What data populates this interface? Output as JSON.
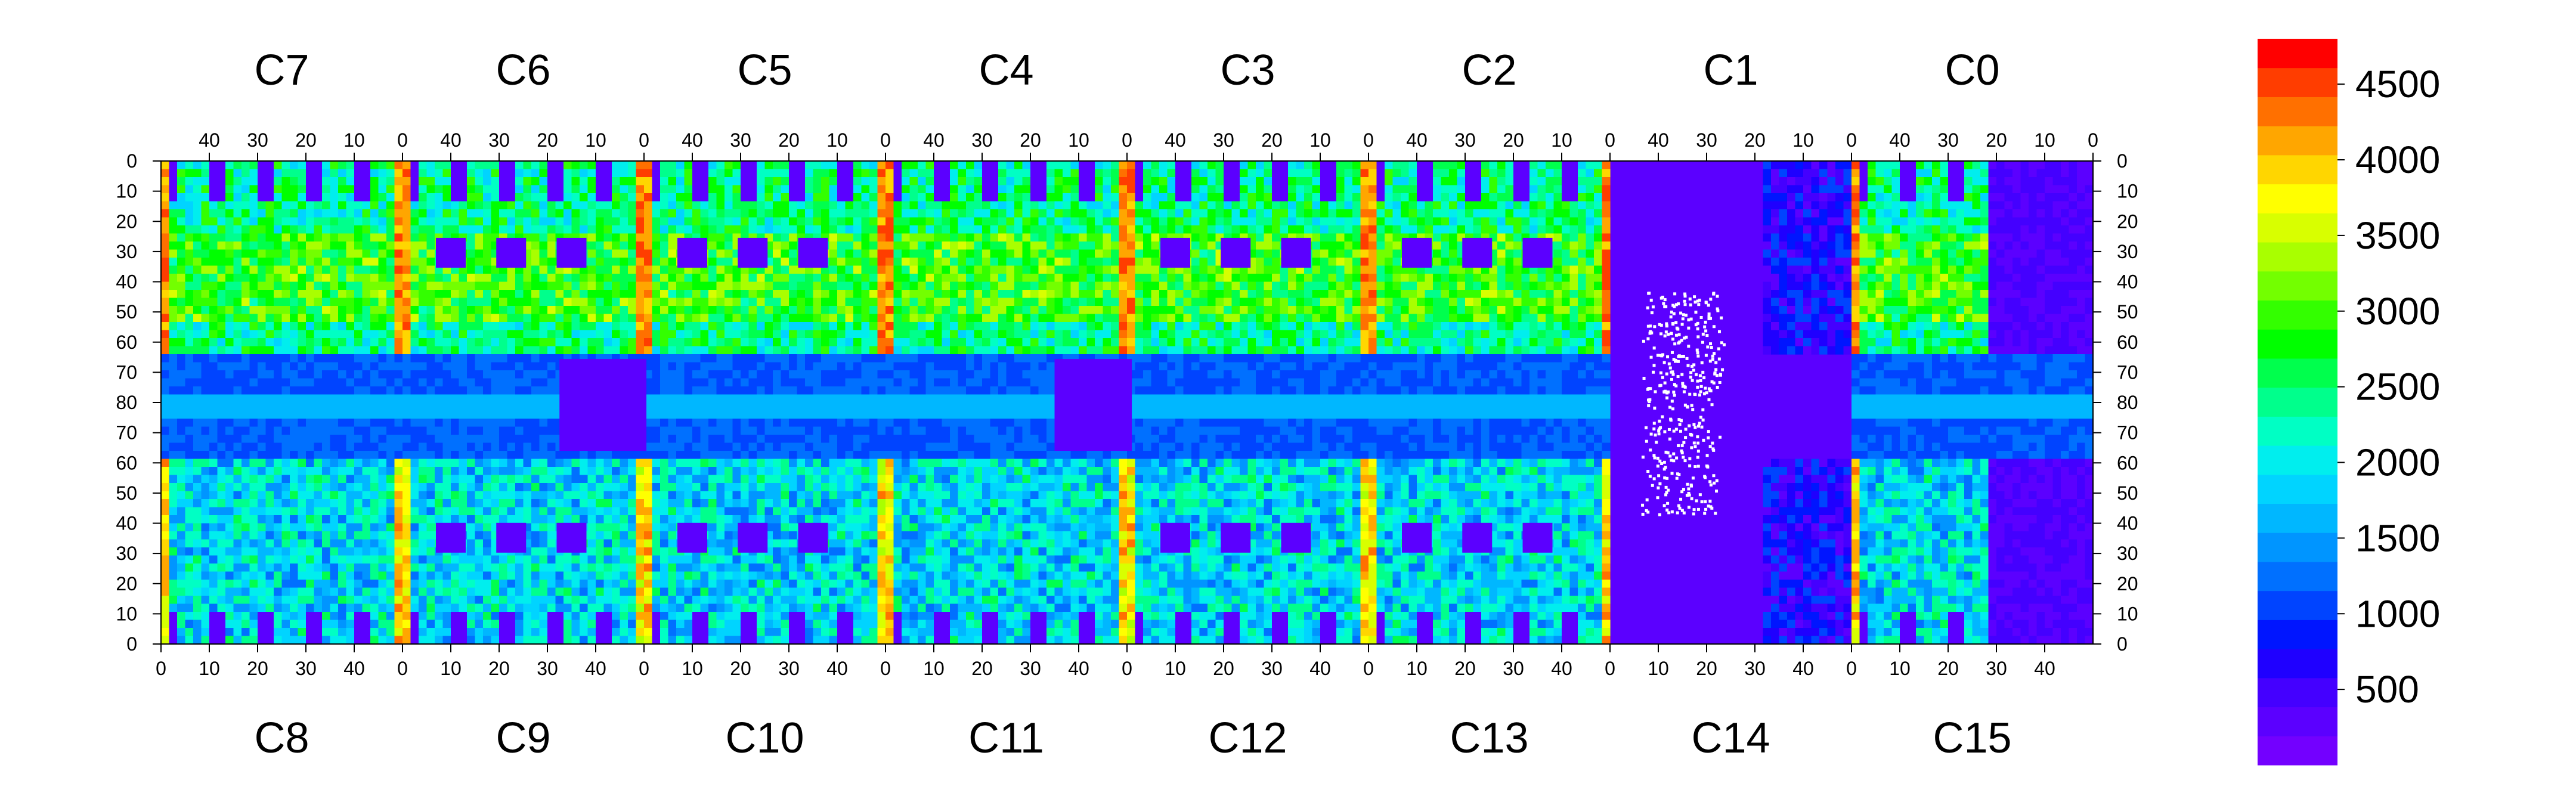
{
  "chart_data": {
    "type": "heatmap",
    "top_chips": [
      "C7",
      "C6",
      "C5",
      "C4",
      "C3",
      "C2",
      "C1",
      "C0"
    ],
    "bottom_chips": [
      "C8",
      "C9",
      "C10",
      "C11",
      "C12",
      "C13",
      "C14",
      "C15"
    ],
    "top_x_ticks": [
      "40",
      "30",
      "20",
      "10",
      "0"
    ],
    "bottom_x_ticks": [
      "0",
      "10",
      "20",
      "30",
      "40"
    ],
    "y_ticks": [
      "0",
      "10",
      "20",
      "30",
      "40",
      "50",
      "60",
      "70",
      "80",
      "70",
      "60",
      "50",
      "40",
      "30",
      "20",
      "10",
      "0"
    ],
    "colorbar": {
      "min": 0,
      "max": 4800,
      "tick_labels": [
        "500",
        "1000",
        "1500",
        "2000",
        "2500",
        "3000",
        "3500",
        "4000",
        "4500"
      ],
      "colors": [
        "#7300ff",
        "#5b00ff",
        "#4400ff",
        "#1f00ff",
        "#0015ff",
        "#0044ff",
        "#0070ff",
        "#0095ff",
        "#00b7ff",
        "#00d4ff",
        "#00eeee",
        "#00ffc4",
        "#00ff8c",
        "#00ff4d",
        "#00ff00",
        "#33ff00",
        "#73ff00",
        "#a9ff00",
        "#d8ff00",
        "#ffff00",
        "#ffd600",
        "#ffa600",
        "#ff7000",
        "#ff3d00",
        "#ff0000"
      ]
    },
    "grid": false,
    "legend": "colorbar-right",
    "region_values": {
      "background": 250,
      "band": 1400,
      "upper_body": 2400,
      "upper_bright": 2900,
      "lower_body": 1900,
      "lower_edge": 1500,
      "column_edge": 3900,
      "chip_hole": 300,
      "insensitive": 100
    }
  }
}
